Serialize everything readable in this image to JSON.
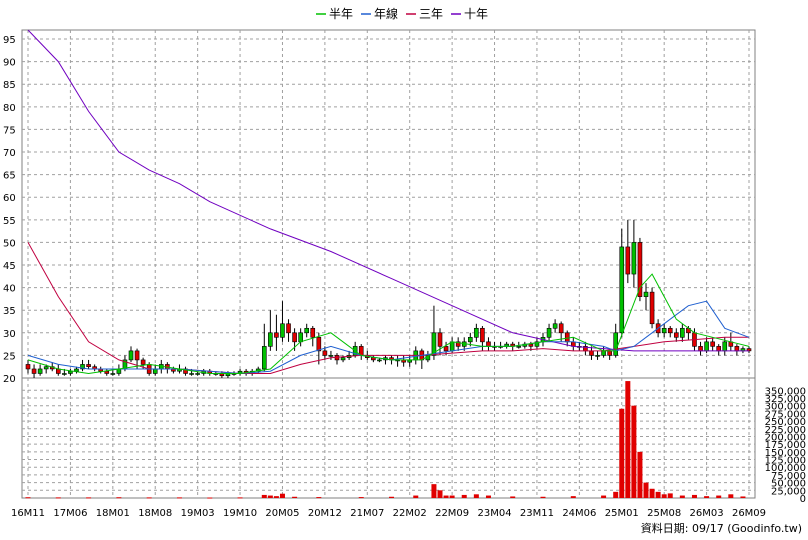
{
  "chart_data": {
    "type": "candlestick_with_volume",
    "legend": [
      {
        "name": "半年",
        "color": "#00c000"
      },
      {
        "name": "年線",
        "color": "#2060d0"
      },
      {
        "name": "三年",
        "color": "#c00040"
      },
      {
        "name": "十年",
        "color": "#7000c0"
      }
    ],
    "x_ticks": [
      "16M11",
      "17M06",
      "18M01",
      "18M08",
      "19M03",
      "19M10",
      "20M05",
      "20M12",
      "21M07",
      "22M02",
      "22M09",
      "23M04",
      "23M11",
      "24M06",
      "25M01",
      "25M08",
      "26M03",
      "26M09"
    ],
    "x_range": [
      0,
      119
    ],
    "price_axis": {
      "min": 20,
      "max": 97,
      "ticks": [
        20,
        25,
        30,
        35,
        40,
        45,
        50,
        55,
        60,
        65,
        70,
        75,
        80,
        85,
        90,
        95
      ]
    },
    "volume_axis": {
      "min": 0,
      "max": 390000,
      "ticks": [
        0,
        25000,
        50000,
        75000,
        100000,
        125000,
        150000,
        175000,
        200000,
        225000,
        250000,
        275000,
        300000,
        325000,
        350000
      ],
      "tick_labels": [
        "0",
        "25,000",
        "50,000",
        "75,000",
        "100,000",
        "125,000",
        "150,000",
        "175,000",
        "200,000",
        "225,000",
        "250,000",
        "275,000",
        "300,000",
        "325,000",
        "350,000"
      ]
    },
    "series": [
      {
        "name": "十年",
        "x": [
          0,
          5,
          10,
          15,
          20,
          25,
          30,
          40,
          50,
          60,
          70,
          80,
          90,
          100,
          110,
          119
        ],
        "values": [
          97,
          90,
          79,
          70,
          66,
          63,
          59,
          53,
          48,
          42,
          36,
          30,
          27,
          26,
          26,
          26
        ]
      },
      {
        "name": "三年",
        "x": [
          0,
          5,
          10,
          15,
          20,
          25,
          30,
          35,
          40,
          45,
          50,
          55,
          60,
          65,
          70,
          75,
          80,
          85,
          90,
          95,
          100,
          105,
          110,
          115,
          119
        ],
        "values": [
          50,
          38,
          28,
          24,
          22,
          22,
          21.5,
          21,
          21,
          23,
          24.5,
          25,
          25,
          25,
          25.5,
          26,
          26,
          26.5,
          26,
          26,
          27,
          28,
          28.5,
          29,
          29
        ]
      },
      {
        "name": "年線",
        "x": [
          0,
          5,
          10,
          15,
          20,
          25,
          30,
          35,
          40,
          45,
          50,
          55,
          60,
          65,
          70,
          75,
          80,
          85,
          90,
          95,
          97,
          100,
          103,
          106,
          109,
          112,
          115,
          119
        ],
        "values": [
          25,
          23,
          22,
          22,
          22,
          22,
          21.5,
          21,
          21.5,
          25,
          27,
          25,
          24,
          25,
          26,
          27,
          27,
          28,
          28,
          27,
          26,
          27,
          30,
          33,
          36,
          37,
          31,
          29
        ]
      },
      {
        "name": "半年",
        "x": [
          0,
          5,
          10,
          15,
          20,
          25,
          30,
          35,
          40,
          45,
          50,
          55,
          60,
          65,
          70,
          75,
          80,
          85,
          90,
          95,
          97,
          99,
          101,
          103,
          105,
          107,
          110,
          113,
          116,
          119
        ],
        "values": [
          24,
          22,
          21,
          22,
          23,
          22,
          21,
          21,
          22,
          28,
          30,
          25,
          24,
          24,
          28,
          27,
          27,
          28,
          29,
          26,
          26,
          33,
          40,
          43,
          38,
          33,
          30,
          29,
          28,
          27
        ]
      }
    ],
    "candles": [
      {
        "x": 0,
        "o": 23,
        "c": 22,
        "h": 24,
        "l": 21
      },
      {
        "x": 1,
        "o": 22,
        "c": 21,
        "h": 23,
        "l": 20
      },
      {
        "x": 2,
        "o": 21,
        "c": 22,
        "h": 23,
        "l": 20.5
      },
      {
        "x": 3,
        "o": 22,
        "c": 22.5,
        "h": 23,
        "l": 21
      },
      {
        "x": 4,
        "o": 22.5,
        "c": 22,
        "h": 23.5,
        "l": 21.5
      },
      {
        "x": 5,
        "o": 22,
        "c": 21,
        "h": 23,
        "l": 20.5
      },
      {
        "x": 6,
        "o": 21,
        "c": 21,
        "h": 22,
        "l": 20.5
      },
      {
        "x": 7,
        "o": 21,
        "c": 21.5,
        "h": 22,
        "l": 20.5
      },
      {
        "x": 8,
        "o": 21.5,
        "c": 22,
        "h": 22.5,
        "l": 21
      },
      {
        "x": 9,
        "o": 22,
        "c": 23,
        "h": 24,
        "l": 21.5
      },
      {
        "x": 10,
        "o": 23,
        "c": 22.5,
        "h": 24,
        "l": 22
      },
      {
        "x": 11,
        "o": 22.5,
        "c": 22,
        "h": 23,
        "l": 21.5
      },
      {
        "x": 12,
        "o": 22,
        "c": 21.5,
        "h": 22.5,
        "l": 21
      },
      {
        "x": 13,
        "o": 21.5,
        "c": 21,
        "h": 22,
        "l": 20.5
      },
      {
        "x": 14,
        "o": 21,
        "c": 21,
        "h": 22,
        "l": 20.5
      },
      {
        "x": 15,
        "o": 21,
        "c": 22,
        "h": 23,
        "l": 20.5
      },
      {
        "x": 16,
        "o": 22,
        "c": 24,
        "h": 25,
        "l": 21.5
      },
      {
        "x": 17,
        "o": 24,
        "c": 26,
        "h": 27,
        "l": 23.5
      },
      {
        "x": 18,
        "o": 26,
        "c": 24,
        "h": 26.5,
        "l": 22
      },
      {
        "x": 19,
        "o": 24,
        "c": 23,
        "h": 24.5,
        "l": 22
      },
      {
        "x": 20,
        "o": 23,
        "c": 21,
        "h": 23.5,
        "l": 20.5
      },
      {
        "x": 21,
        "o": 21,
        "c": 22,
        "h": 23,
        "l": 20.5
      },
      {
        "x": 22,
        "o": 22,
        "c": 23,
        "h": 24,
        "l": 21
      },
      {
        "x": 23,
        "o": 23,
        "c": 22,
        "h": 23.5,
        "l": 21
      },
      {
        "x": 24,
        "o": 22,
        "c": 21.5,
        "h": 22.5,
        "l": 21
      },
      {
        "x": 25,
        "o": 21.5,
        "c": 22,
        "h": 23,
        "l": 21
      },
      {
        "x": 26,
        "o": 22,
        "c": 21,
        "h": 22.5,
        "l": 20.5
      },
      {
        "x": 27,
        "o": 21,
        "c": 21,
        "h": 22,
        "l": 20.5
      },
      {
        "x": 28,
        "o": 21,
        "c": 21,
        "h": 21.5,
        "l": 20.5
      },
      {
        "x": 29,
        "o": 21,
        "c": 21.5,
        "h": 22,
        "l": 20.5
      },
      {
        "x": 30,
        "o": 21.5,
        "c": 21,
        "h": 22,
        "l": 20.5
      },
      {
        "x": 31,
        "o": 21,
        "c": 21,
        "h": 21.5,
        "l": 20.5
      },
      {
        "x": 32,
        "o": 21,
        "c": 20.5,
        "h": 21.5,
        "l": 20
      },
      {
        "x": 33,
        "o": 20.5,
        "c": 21,
        "h": 21.5,
        "l": 20
      },
      {
        "x": 34,
        "o": 21,
        "c": 21,
        "h": 21.5,
        "l": 20.5
      },
      {
        "x": 35,
        "o": 21,
        "c": 21.5,
        "h": 22,
        "l": 20.5
      },
      {
        "x": 36,
        "o": 21.5,
        "c": 21,
        "h": 22,
        "l": 20.5
      },
      {
        "x": 37,
        "o": 21,
        "c": 21.5,
        "h": 22,
        "l": 20.5
      },
      {
        "x": 38,
        "o": 21.5,
        "c": 22,
        "h": 22.5,
        "l": 21
      },
      {
        "x": 39,
        "o": 22,
        "c": 27,
        "h": 32,
        "l": 21.5
      },
      {
        "x": 40,
        "o": 27,
        "c": 30,
        "h": 35,
        "l": 26
      },
      {
        "x": 41,
        "o": 30,
        "c": 29,
        "h": 34,
        "l": 26
      },
      {
        "x": 42,
        "o": 29,
        "c": 32,
        "h": 37,
        "l": 28
      },
      {
        "x": 43,
        "o": 32,
        "c": 30,
        "h": 33,
        "l": 28
      },
      {
        "x": 44,
        "o": 30,
        "c": 28,
        "h": 31,
        "l": 26
      },
      {
        "x": 45,
        "o": 28,
        "c": 30,
        "h": 31,
        "l": 27
      },
      {
        "x": 46,
        "o": 30,
        "c": 31,
        "h": 32,
        "l": 29
      },
      {
        "x": 47,
        "o": 31,
        "c": 29,
        "h": 31.5,
        "l": 27
      },
      {
        "x": 48,
        "o": 29,
        "c": 26,
        "h": 30,
        "l": 23
      },
      {
        "x": 49,
        "o": 26,
        "c": 25,
        "h": 27,
        "l": 24
      },
      {
        "x": 50,
        "o": 25,
        "c": 25,
        "h": 26,
        "l": 24
      },
      {
        "x": 51,
        "o": 25,
        "c": 24,
        "h": 25.5,
        "l": 23
      },
      {
        "x": 52,
        "o": 24,
        "c": 24.5,
        "h": 25,
        "l": 23.5
      },
      {
        "x": 53,
        "o": 24.5,
        "c": 25,
        "h": 26,
        "l": 24
      },
      {
        "x": 54,
        "o": 25,
        "c": 27,
        "h": 28,
        "l": 24.5
      },
      {
        "x": 55,
        "o": 27,
        "c": 25,
        "h": 27.5,
        "l": 24
      },
      {
        "x": 56,
        "o": 25,
        "c": 24.5,
        "h": 26,
        "l": 24
      },
      {
        "x": 57,
        "o": 24.5,
        "c": 24,
        "h": 25,
        "l": 23.5
      },
      {
        "x": 58,
        "o": 24,
        "c": 24,
        "h": 24.5,
        "l": 23.5
      },
      {
        "x": 59,
        "o": 24,
        "c": 24.5,
        "h": 25,
        "l": 23
      },
      {
        "x": 60,
        "o": 24.5,
        "c": 24,
        "h": 25,
        "l": 23
      },
      {
        "x": 61,
        "o": 24,
        "c": 24,
        "h": 25,
        "l": 22.5
      },
      {
        "x": 62,
        "o": 24,
        "c": 23.5,
        "h": 25,
        "l": 22.5
      },
      {
        "x": 63,
        "o": 23.5,
        "c": 24,
        "h": 25,
        "l": 22.5
      },
      {
        "x": 64,
        "o": 24,
        "c": 26,
        "h": 27,
        "l": 23
      },
      {
        "x": 65,
        "o": 26,
        "c": 24,
        "h": 26.5,
        "l": 22
      },
      {
        "x": 66,
        "o": 24,
        "c": 25,
        "h": 26,
        "l": 23.5
      },
      {
        "x": 67,
        "o": 25,
        "c": 30,
        "h": 36,
        "l": 24
      },
      {
        "x": 68,
        "o": 30,
        "c": 27,
        "h": 31,
        "l": 25
      },
      {
        "x": 69,
        "o": 27,
        "c": 26,
        "h": 28,
        "l": 25
      },
      {
        "x": 70,
        "o": 26,
        "c": 28,
        "h": 29,
        "l": 25.5
      },
      {
        "x": 71,
        "o": 28,
        "c": 27,
        "h": 29,
        "l": 26
      },
      {
        "x": 72,
        "o": 27,
        "c": 28,
        "h": 29,
        "l": 26
      },
      {
        "x": 73,
        "o": 28,
        "c": 29,
        "h": 30,
        "l": 27
      },
      {
        "x": 74,
        "o": 29,
        "c": 31,
        "h": 32,
        "l": 28
      },
      {
        "x": 75,
        "o": 31,
        "c": 28,
        "h": 31.5,
        "l": 26
      },
      {
        "x": 76,
        "o": 28,
        "c": 27,
        "h": 29,
        "l": 26
      },
      {
        "x": 77,
        "o": 27,
        "c": 27,
        "h": 28,
        "l": 26
      },
      {
        "x": 78,
        "o": 27,
        "c": 27,
        "h": 28,
        "l": 26.5
      },
      {
        "x": 79,
        "o": 27,
        "c": 27.5,
        "h": 28,
        "l": 26.5
      },
      {
        "x": 80,
        "o": 27.5,
        "c": 27,
        "h": 28,
        "l": 26
      },
      {
        "x": 81,
        "o": 27,
        "c": 27,
        "h": 28,
        "l": 26.5
      },
      {
        "x": 82,
        "o": 27,
        "c": 27.5,
        "h": 28,
        "l": 26.5
      },
      {
        "x": 83,
        "o": 27.5,
        "c": 27,
        "h": 28,
        "l": 26
      },
      {
        "x": 84,
        "o": 27,
        "c": 28,
        "h": 29,
        "l": 26.5
      },
      {
        "x": 85,
        "o": 28,
        "c": 29,
        "h": 30,
        "l": 27
      },
      {
        "x": 86,
        "o": 29,
        "c": 31,
        "h": 32,
        "l": 28
      },
      {
        "x": 87,
        "o": 31,
        "c": 32,
        "h": 33,
        "l": 30
      },
      {
        "x": 88,
        "o": 32,
        "c": 30,
        "h": 32.5,
        "l": 28
      },
      {
        "x": 89,
        "o": 30,
        "c": 28,
        "h": 30.5,
        "l": 27
      },
      {
        "x": 90,
        "o": 28,
        "c": 27,
        "h": 29,
        "l": 26
      },
      {
        "x": 91,
        "o": 27,
        "c": 27,
        "h": 28,
        "l": 26
      },
      {
        "x": 92,
        "o": 27,
        "c": 26,
        "h": 28,
        "l": 25
      },
      {
        "x": 93,
        "o": 26,
        "c": 25,
        "h": 27,
        "l": 24
      },
      {
        "x": 94,
        "o": 25,
        "c": 25,
        "h": 26,
        "l": 24
      },
      {
        "x": 95,
        "o": 25,
        "c": 26,
        "h": 27,
        "l": 24.5
      },
      {
        "x": 96,
        "o": 26,
        "c": 25,
        "h": 26.5,
        "l": 24
      },
      {
        "x": 97,
        "o": 25,
        "c": 30,
        "h": 32,
        "l": 24.5
      },
      {
        "x": 98,
        "o": 30,
        "c": 49,
        "h": 53,
        "l": 29
      },
      {
        "x": 99,
        "o": 49,
        "c": 43,
        "h": 55,
        "l": 41
      },
      {
        "x": 100,
        "o": 43,
        "c": 50,
        "h": 55,
        "l": 40
      },
      {
        "x": 101,
        "o": 50,
        "c": 38,
        "h": 51,
        "l": 37
      },
      {
        "x": 102,
        "o": 38,
        "c": 39,
        "h": 41,
        "l": 35
      },
      {
        "x": 103,
        "o": 39,
        "c": 32,
        "h": 40,
        "l": 31
      },
      {
        "x": 104,
        "o": 32,
        "c": 30,
        "h": 33,
        "l": 29
      },
      {
        "x": 105,
        "o": 30,
        "c": 31,
        "h": 32,
        "l": 29
      },
      {
        "x": 106,
        "o": 31,
        "c": 30,
        "h": 31.5,
        "l": 29
      },
      {
        "x": 107,
        "o": 30,
        "c": 29,
        "h": 31,
        "l": 28
      },
      {
        "x": 108,
        "o": 29,
        "c": 31,
        "h": 32,
        "l": 28
      },
      {
        "x": 109,
        "o": 31,
        "c": 30,
        "h": 31.5,
        "l": 28.5
      },
      {
        "x": 110,
        "o": 30,
        "c": 27,
        "h": 31,
        "l": 26
      },
      {
        "x": 111,
        "o": 27,
        "c": 26,
        "h": 28,
        "l": 25
      },
      {
        "x": 112,
        "o": 26,
        "c": 28,
        "h": 29,
        "l": 25.5
      },
      {
        "x": 113,
        "o": 28,
        "c": 27,
        "h": 29,
        "l": 26
      },
      {
        "x": 114,
        "o": 27,
        "c": 26,
        "h": 27.5,
        "l": 25
      },
      {
        "x": 115,
        "o": 26,
        "c": 28,
        "h": 29,
        "l": 25
      },
      {
        "x": 116,
        "o": 28,
        "c": 27,
        "h": 30,
        "l": 26
      },
      {
        "x": 117,
        "o": 27,
        "c": 26,
        "h": 27.5,
        "l": 25
      },
      {
        "x": 118,
        "o": 26,
        "c": 26.5,
        "h": 27,
        "l": 25.5
      },
      {
        "x": 119,
        "o": 26.5,
        "c": 26,
        "h": 27,
        "l": 25.5
      }
    ],
    "volume": {
      "x": [
        0,
        5,
        10,
        15,
        20,
        25,
        30,
        35,
        39,
        40,
        41,
        42,
        44,
        48,
        55,
        60,
        64,
        67,
        68,
        69,
        70,
        72,
        74,
        76,
        80,
        85,
        90,
        95,
        97,
        98,
        99,
        100,
        101,
        102,
        103,
        104,
        105,
        106,
        108,
        110,
        112,
        114,
        116,
        118
      ],
      "values": [
        2500,
        2000,
        2000,
        2500,
        2000,
        2000,
        1500,
        2000,
        10000,
        8000,
        6000,
        14000,
        4000,
        3000,
        3000,
        4000,
        8000,
        45000,
        25000,
        8000,
        8000,
        10000,
        12000,
        8000,
        5000,
        4000,
        6000,
        8000,
        20000,
        290000,
        380000,
        300000,
        150000,
        50000,
        30000,
        20000,
        12000,
        15000,
        8000,
        10000,
        6000,
        8000,
        12000,
        5000
      ]
    },
    "credit": "資料日期: 09/17  (Goodinfo.tw)"
  }
}
